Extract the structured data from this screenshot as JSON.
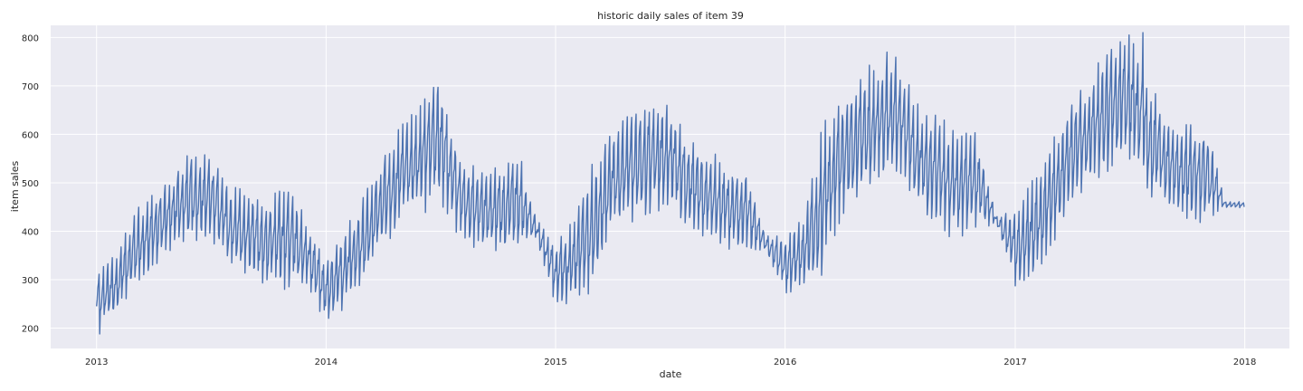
{
  "chart_data": {
    "type": "line",
    "title": "historic daily sales of item 39",
    "xlabel": "date",
    "ylabel": "item sales",
    "x_range": [
      "2012-10-20",
      "2018-03-13"
    ],
    "ylim": [
      158,
      825
    ],
    "x_ticks": [
      "2013",
      "2014",
      "2015",
      "2016",
      "2017",
      "2018"
    ],
    "y_ticks": [
      200,
      300,
      400,
      500,
      600,
      700,
      800
    ],
    "grid": true,
    "background": "#eaeaf2",
    "grid_color": "#ffffff",
    "series": [
      {
        "line_color": "#4c72b0",
        "start_date": "2013-01-01",
        "end_date": "2017-12-31",
        "frequency": "daily",
        "monthly_typical_low": [
          [
            215,
            235,
            300,
            330,
            380,
            390,
            400,
            350,
            320,
            300,
            300,
            300
          ],
          [
            220,
            260,
            300,
            380,
            440,
            460,
            480,
            400,
            380,
            370,
            370,
            390
          ],
          [
            260,
            270,
            300,
            410,
            440,
            460,
            470,
            420,
            400,
            380,
            370,
            360
          ],
          [
            280,
            300,
            330,
            460,
            500,
            520,
            540,
            460,
            420,
            410,
            420,
            420
          ],
          [
            300,
            320,
            380,
            480,
            520,
            540,
            570,
            490,
            460,
            440,
            440,
            450
          ]
        ],
        "monthly_typical_high": [
          [
            300,
            340,
            420,
            470,
            500,
            560,
            540,
            480,
            470,
            450,
            480,
            410
          ],
          [
            330,
            390,
            450,
            540,
            600,
            640,
            700,
            540,
            510,
            520,
            560,
            420
          ],
          [
            370,
            410,
            520,
            590,
            620,
            670,
            650,
            570,
            550,
            520,
            510,
            390
          ],
          [
            380,
            420,
            590,
            650,
            700,
            740,
            740,
            640,
            610,
            590,
            590,
            430
          ],
          [
            430,
            490,
            570,
            650,
            700,
            760,
            810,
            690,
            620,
            600,
            600,
            460
          ]
        ],
        "max_point": {
          "date": "2017-07-23",
          "value": 810
        },
        "min_point": {
          "date": "2013-01-06",
          "value": 188
        }
      }
    ]
  }
}
